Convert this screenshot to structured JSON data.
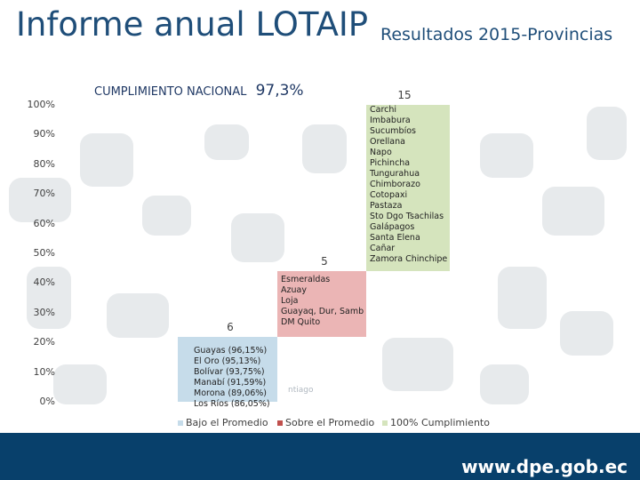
{
  "header": {
    "title": "Informe anual LOTAIP",
    "subtitle": "Resultados 2015-Provincias"
  },
  "chart_title": {
    "label": "CUMPLIMIENTO NACIONAL",
    "value": "97,3%"
  },
  "chart_data": {
    "type": "bar",
    "title": "CUMPLIMIENTO NACIONAL 97,3%",
    "y_ticks": [
      "100%",
      "90%",
      "80%",
      "70%",
      "60%",
      "50%",
      "40%",
      "30%",
      "20%",
      "10%",
      "0%"
    ],
    "ylim": [
      0,
      100
    ],
    "categories": [
      "Bajo el Promedio",
      "Sobre el Promedio",
      "100% Cumplimiento"
    ],
    "series": [
      {
        "name": "Bajo el Promedio",
        "color": "#c6dcea",
        "count": "6",
        "low": 0,
        "high": 22,
        "provinces": [
          "Guayas (96,15%)",
          "El Oro (95,13%)",
          "Bolívar (93,75%)",
          "Manabí (91,59%)",
          "Morona (89,06%)",
          "Los Ríos (86,05%)"
        ]
      },
      {
        "name": "Sobre el Promedio",
        "color": "#ebb5b5",
        "count": "5",
        "low": 22,
        "high": 44,
        "provinces": [
          "Esmeraldas",
          "Azuay",
          "Loja",
          "Guayaq, Dur, Samb",
          "DM Quito"
        ]
      },
      {
        "name": "100% Cumplimiento",
        "color": "#d5e4bd",
        "count": "15",
        "low": 44,
        "high": 100,
        "provinces": [
          "Carchi",
          "Imbabura",
          "Sucumbíos",
          "Orellana",
          "Napo",
          "Pichincha",
          "Tungurahua",
          "Chimborazo",
          "Cotopaxi",
          "Pastaza",
          "Sto Dgo Tsachilas",
          "Galápagos",
          "Santa Elena",
          "Cañar",
          "Zamora Chinchipe"
        ]
      }
    ],
    "faded_label": "ntiago"
  },
  "legend": [
    {
      "label": "Bajo el Promedio",
      "color": "#c6dcea"
    },
    {
      "label": "Sobre el Promedio",
      "color": "#c0504d"
    },
    {
      "label": "100% Cumplimiento",
      "color": "#d5e4bd"
    }
  ],
  "footer": {
    "url": "www.dpe.gob.ec"
  }
}
